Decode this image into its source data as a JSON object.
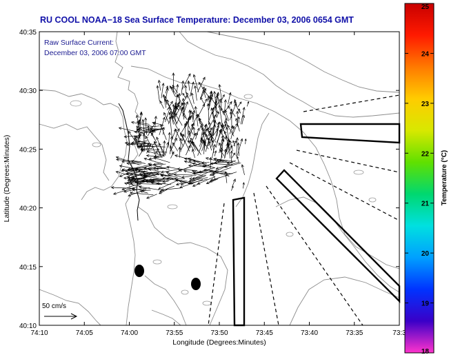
{
  "title": "RU COOL  NOAA−18  Sea Surface Temperature:  December 03, 2006 0654 GMT",
  "annotation": {
    "line1": "Raw Surface Current:",
    "line2": "December 03, 2006 07:00 GMT"
  },
  "scale_label": "50 cm/s",
  "axes": {
    "xlabel": "Longitude (Degrees:Minutes)",
    "ylabel": "Latitude (Degrees:Minutes)",
    "x_ticks": [
      "74:10",
      "74:05",
      "74:00",
      "73:55",
      "73:50",
      "73:45",
      "73:40",
      "73:35",
      "73:3"
    ],
    "y_ticks": [
      "40:35",
      "40:30",
      "40:25",
      "40:20",
      "40:15",
      "40:10"
    ]
  },
  "colorbar": {
    "label": "Temperature (°C)",
    "ticks": [
      "25",
      "24",
      "23",
      "22",
      "21",
      "20",
      "19",
      "18"
    ],
    "min": 18,
    "max": 25,
    "colors": [
      "#ff33cc",
      "#3a00c8",
      "#0033ff",
      "#00a0ff",
      "#00e0e0",
      "#00d870",
      "#60e000",
      "#d8e800",
      "#ffcc00",
      "#ff7a00",
      "#ff1a00",
      "#c80000"
    ]
  },
  "colors": {
    "title": "#1010a8",
    "annotation": "#1a1a90",
    "contour": "#8c8c8c",
    "vector": "#000000"
  }
}
